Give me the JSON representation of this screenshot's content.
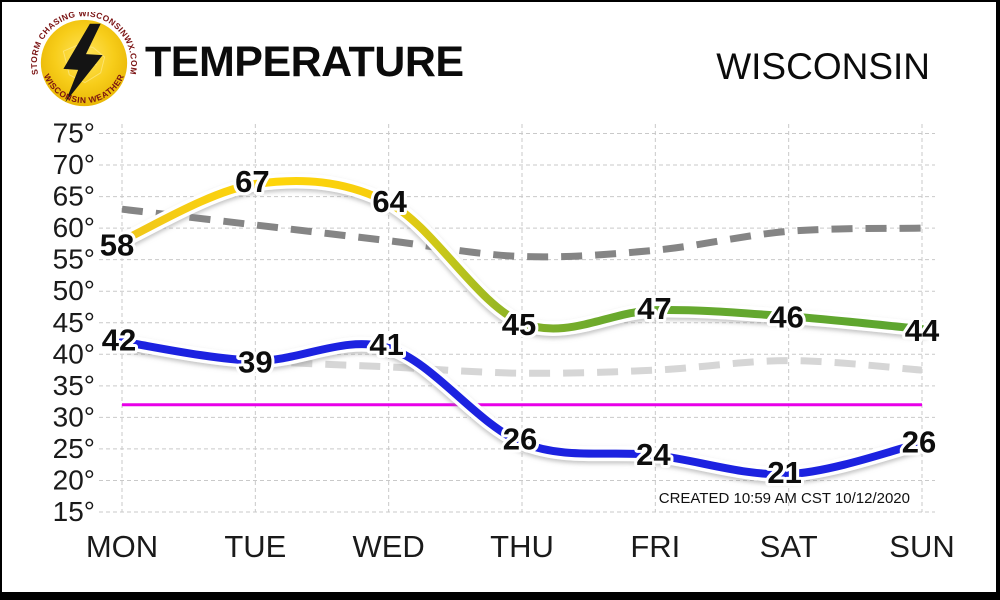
{
  "header": {
    "title": "TEMPERATURE",
    "region": "WISCONSIN",
    "logo": {
      "top_text": "STORM CHASING  WISCONSINWX.COM",
      "bottom_text": "WISCONSIN WEATHER",
      "disc_color": "#F5C812",
      "bolt_color": "#141414",
      "text_color": "#7A1212"
    }
  },
  "chart_data": {
    "type": "line",
    "title": "TEMPERATURE",
    "region": "WISCONSIN",
    "categories": [
      "MON",
      "TUE",
      "WED",
      "THU",
      "FRI",
      "SAT",
      "SUN"
    ],
    "ylim": [
      15,
      75
    ],
    "ytick_step": 5,
    "ytick_labels": [
      "75°",
      "70°",
      "65°",
      "60°",
      "55°",
      "50°",
      "45°",
      "40°",
      "35°",
      "30°",
      "25°",
      "20°",
      "15°"
    ],
    "grid": true,
    "legend": "none",
    "series": [
      {
        "name": "forecast-high",
        "values": [
          58,
          67,
          64,
          45,
          47,
          46,
          44
        ],
        "style": "gradient",
        "gradient_stops": [
          [
            0.0,
            "#EFC61B"
          ],
          [
            0.18,
            "#FFD60A"
          ],
          [
            0.33,
            "#F6CD0E"
          ],
          [
            0.41,
            "#C2C61A"
          ],
          [
            0.5,
            "#84B028"
          ],
          [
            0.62,
            "#68A92D"
          ],
          [
            1.0,
            "#5CA52F"
          ]
        ],
        "width": 8,
        "show_labels": true,
        "label_offsets": [
          [
            -5,
            4
          ],
          [
            -3,
            -3
          ],
          [
            1,
            -2
          ],
          [
            -3,
            1
          ],
          [
            -1,
            -2
          ],
          [
            -2,
            0
          ],
          [
            0,
            1
          ]
        ]
      },
      {
        "name": "forecast-low",
        "values": [
          42,
          39,
          41,
          26,
          24,
          21,
          26
        ],
        "color": "#1C22E0",
        "width": 8,
        "show_labels": true,
        "label_offsets": [
          [
            -3,
            -2
          ],
          [
            0,
            1
          ],
          [
            -2,
            -4
          ],
          [
            -2,
            -4
          ],
          [
            -2,
            -1
          ],
          [
            -4,
            -2
          ],
          [
            -3,
            -1
          ]
        ]
      },
      {
        "name": "average-high",
        "values": [
          63,
          60.5,
          58,
          55.5,
          56.5,
          59.5,
          60
        ],
        "color": "#858585",
        "width": 7,
        "dash": "21 13",
        "show_labels": false
      },
      {
        "name": "average-low",
        "values": [
          41,
          39,
          38,
          37,
          37.5,
          39,
          37.5
        ],
        "color": "#D6D6D6",
        "width": 7,
        "dash": "21 13",
        "show_labels": false
      }
    ],
    "reference_line": {
      "name": "freezing-line",
      "value": 32,
      "color": "#E800E8",
      "width": 3
    },
    "gridline_color": "#C9C9C9",
    "label_color": "#0D0D0D",
    "axis_text_color": "#1A1A1A",
    "created_text": "CREATED 10:59 AM CST 10/12/2020"
  }
}
